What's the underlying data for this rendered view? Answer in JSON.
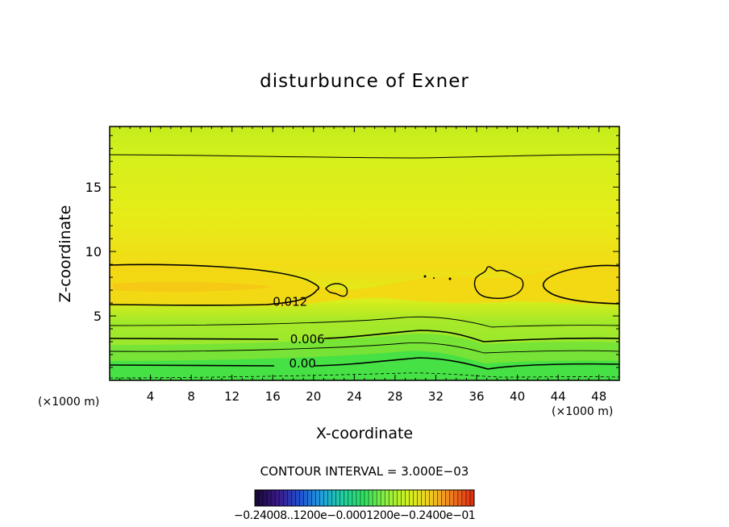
{
  "chart_data": {
    "type": "contour",
    "title": "disturbunce of Exner",
    "xlabel": "X-coordinate",
    "ylabel": "Z-coordinate",
    "x_unit_label": "(×1000 m)",
    "x_ticks": [
      4,
      8,
      12,
      16,
      20,
      24,
      28,
      32,
      36,
      40,
      44,
      48
    ],
    "y_ticks": [
      5,
      10,
      15
    ],
    "xlim": [
      0,
      50
    ],
    "ylim": [
      0,
      19.7
    ],
    "contour_interval_text": "CONTOUR INTERVAL = 3.000E−03",
    "contour_labels": [
      {
        "text": "0.012",
        "x": 16,
        "z": 6.1
      },
      {
        "text": "0.006",
        "x": 17.7,
        "z": 3.2
      },
      {
        "text": "0.00",
        "x": 17.6,
        "z": 1.3
      }
    ],
    "colorbar_labels_text": "−0.24008..1200e−0.0001200e−0.2400e−01",
    "colormap": [
      "#1a0a3a",
      "#3a1a8a",
      "#2050d0",
      "#20a0e0",
      "#20d0a0",
      "#30e060",
      "#90f040",
      "#d0f020",
      "#f0d020",
      "#f08020",
      "#e03010"
    ]
  }
}
